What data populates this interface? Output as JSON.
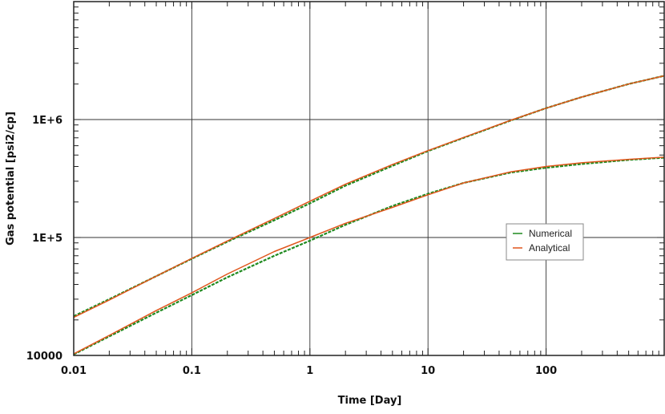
{
  "chart_data": {
    "type": "line",
    "xlabel": "Time [Day]",
    "ylabel": "Gas potential [psi2/cp]",
    "x_scale": "log",
    "y_scale": "log",
    "xlim": [
      0.01,
      1000
    ],
    "ylim": [
      10000,
      10000000
    ],
    "x_tick_values": [
      0.01,
      0.1,
      1,
      10,
      100
    ],
    "x_tick_labels": [
      "0.01",
      "0.1",
      "1",
      "10",
      "100"
    ],
    "y_tick_values": [
      10000,
      100000,
      1000000
    ],
    "y_tick_labels": [
      "10000",
      "1E+5",
      "1E+6"
    ],
    "grid": true,
    "legend_position": "right",
    "series": [
      {
        "name": "Numerical",
        "color": "#1f8a1f",
        "curves": [
          {
            "x": [
              0.01,
              0.02,
              0.05,
              0.1,
              0.2,
              0.5,
              1,
              2,
              5,
              10,
              20,
              50,
              100,
              200,
              500,
              1000
            ],
            "y": [
              21500,
              30000,
              47000,
              66000,
              92000,
              140000,
              195000,
              275000,
              405000,
              540000,
              700000,
              980000,
              1250000,
              1550000,
              2000000,
              2350000
            ]
          },
          {
            "x": [
              0.01,
              0.02,
              0.05,
              0.1,
              0.2,
              0.5,
              1,
              2,
              5,
              10,
              20,
              50,
              100,
              200,
              500,
              1000
            ],
            "y": [
              10200,
              14500,
              23000,
              32500,
              46000,
              70000,
              94000,
              128000,
              185000,
              235000,
              290000,
              355000,
              390000,
              420000,
              455000,
              475000
            ]
          }
        ]
      },
      {
        "name": "Analytical",
        "color": "#e0561c",
        "curves": [
          {
            "x": [
              0.01,
              0.02,
              0.05,
              0.1,
              0.2,
              0.5,
              1,
              2,
              5,
              10,
              20,
              50,
              100,
              200,
              500,
              1000
            ],
            "y": [
              21000,
              29500,
              47000,
              66500,
              93500,
              145000,
              203000,
              283000,
              415000,
              545000,
              705000,
              985000,
              1250000,
              1550000,
              2000000,
              2350000
            ]
          },
          {
            "x": [
              0.01,
              0.02,
              0.05,
              0.1,
              0.2,
              0.5,
              1,
              2,
              5,
              10,
              20,
              50,
              100,
              200,
              500,
              1000
            ],
            "y": [
              10300,
              14800,
              24000,
              34000,
              49000,
              76000,
              100000,
              132000,
              180000,
              230000,
              290000,
              360000,
              400000,
              430000,
              460000,
              480000
            ]
          }
        ]
      }
    ]
  }
}
